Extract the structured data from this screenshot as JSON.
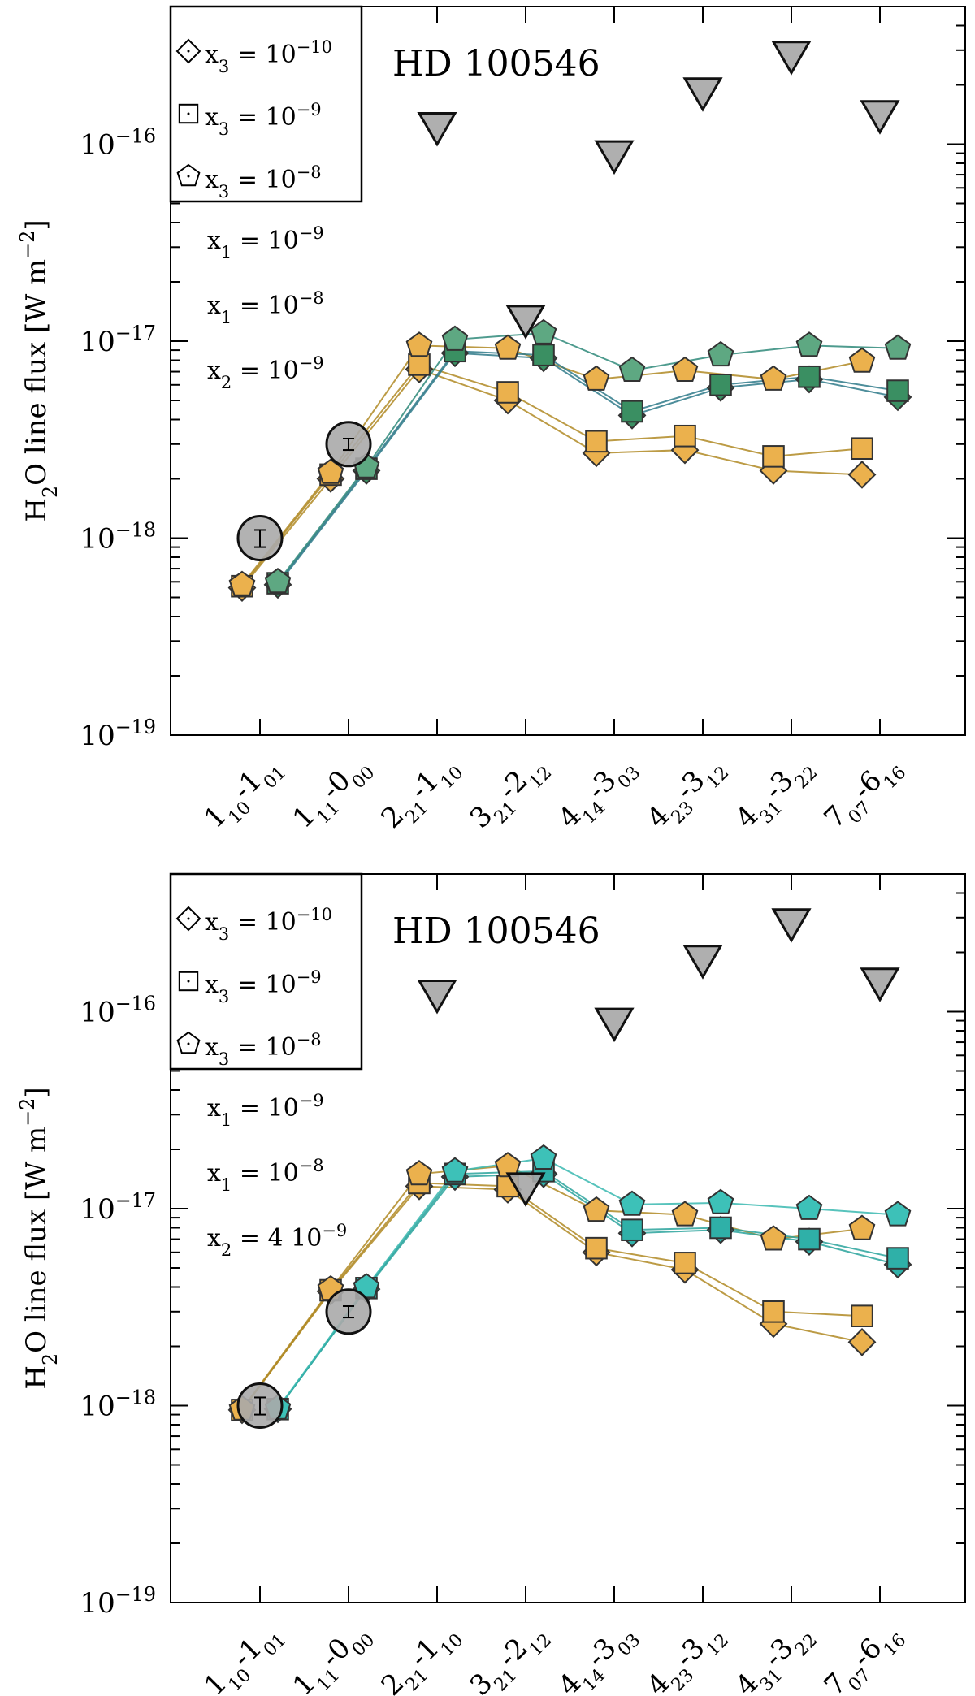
{
  "chart_data": [
    {
      "type": "line",
      "title": "HD 100546",
      "ylabel": "H2O line flux [W m-2]",
      "yscale": "log",
      "ylim": [
        1e-19,
        5e-16
      ],
      "y_ticks": [
        "10-19",
        "10-18",
        "10-17",
        "10-16"
      ],
      "categories": [
        "110-101",
        "111-000",
        "221-110",
        "321-212",
        "414-303",
        "423-312",
        "431-322",
        "707-616"
      ],
      "legend_markers": [
        {
          "marker": "diamond",
          "label": "x3 = 10-10"
        },
        {
          "marker": "square",
          "label": "x3 = 10-9"
        },
        {
          "marker": "pentagon",
          "label": "x3 = 10-8"
        }
      ],
      "model_notes": [
        {
          "label": "x1 = 10-9",
          "color": "#d4a130"
        },
        {
          "label": "x1 = 10-8",
          "color": "#3dbdb4"
        },
        {
          "label": "x2 = 10-9",
          "color": "#000000"
        }
      ],
      "observed_detections": [
        {
          "category": "110-101",
          "value": 1e-18,
          "err": 1e-19
        },
        {
          "category": "111-000",
          "value": 3e-18,
          "err": 2e-19
        }
      ],
      "upper_limits": [
        {
          "category": "221-110",
          "value": 1e-16
        },
        {
          "category": "321-212",
          "value": 1.05e-17
        },
        {
          "category": "414-303",
          "value": 7.2e-17
        },
        {
          "category": "423-312",
          "value": 1.5e-16
        },
        {
          "category": "431-322",
          "value": 2.3e-16
        },
        {
          "category": "707-616",
          "value": 1.15e-16
        }
      ],
      "series": [
        {
          "name": "x1 = 10-9, x3 = 10-10",
          "x1": "1e-9",
          "marker": "diamond",
          "color": "#ebb14d",
          "line": "#b08a25",
          "values": [
            5.6e-19,
            2e-18,
            7.2e-18,
            5e-18,
            2.7e-18,
            2.8e-18,
            2.2e-18,
            2.1e-18
          ]
        },
        {
          "name": "x1 = 10-9, x3 = 10-9",
          "x1": "1e-9",
          "marker": "square",
          "color": "#ebb14d",
          "line": "#b08a25",
          "values": [
            5.7e-19,
            2.1e-18,
            7.6e-18,
            5.5e-18,
            3.1e-18,
            3.3e-18,
            2.6e-18,
            2.85e-18
          ]
        },
        {
          "name": "x1 = 10-9, x3 = 10-8",
          "x1": "1e-9",
          "marker": "pentagon",
          "color": "#ebb14d",
          "line": "#b08a25",
          "values": [
            5.8e-19,
            2.15e-18,
            9.5e-18,
            9.2e-18,
            6.4e-18,
            7.1e-18,
            6.4e-18,
            7.9e-18
          ]
        },
        {
          "name": "x1 = 10-8, x3 = 10-10",
          "x1": "1e-8",
          "marker": "diamond",
          "color": "#3a8f62",
          "line": "#2f7a8a",
          "values": [
            5.8e-19,
            2.2e-18,
            8.7e-18,
            8.2e-18,
            4.2e-18,
            5.8e-18,
            6.4e-18,
            5.2e-18
          ]
        },
        {
          "name": "x1 = 10-8, x3 = 10-9",
          "x1": "1e-8",
          "marker": "square",
          "color": "#3a8f62",
          "line": "#2f7a8a",
          "values": [
            5.9e-19,
            2.25e-18,
            8.9e-18,
            8.5e-18,
            4.4e-18,
            6e-18,
            6.6e-18,
            5.6e-18
          ]
        },
        {
          "name": "x1 = 10-8, x3 = 10-8",
          "x1": "1e-8",
          "marker": "pentagon",
          "color": "#5ea882",
          "line": "#2f8a7a",
          "values": [
            6e-19,
            2.3e-18,
            1.02e-17,
            1.1e-17,
            7.1e-18,
            8.5e-18,
            9.5e-18,
            9.2e-18
          ]
        }
      ]
    },
    {
      "type": "line",
      "title": "HD 100546",
      "ylabel": "H2O line flux [W m-2]",
      "yscale": "log",
      "ylim": [
        1e-19,
        5e-16
      ],
      "y_ticks": [
        "10-19",
        "10-18",
        "10-17",
        "10-16"
      ],
      "categories": [
        "110-101",
        "111-000",
        "221-110",
        "321-212",
        "414-303",
        "423-312",
        "431-322",
        "707-616"
      ],
      "legend_markers": [
        {
          "marker": "diamond",
          "label": "x3 = 10-10"
        },
        {
          "marker": "square",
          "label": "x3 = 10-9"
        },
        {
          "marker": "pentagon",
          "label": "x3 = 10-8"
        }
      ],
      "model_notes": [
        {
          "label": "x1 = 10-9",
          "color": "#d4a130"
        },
        {
          "label": "x1 = 10-8",
          "color": "#3dbdb4"
        },
        {
          "label": "x2 = 4 10-9",
          "color": "#000000"
        }
      ],
      "observed_detections": [
        {
          "category": "110-101",
          "value": 1e-18,
          "err": 1e-19
        },
        {
          "category": "111-000",
          "value": 3e-18,
          "err": 2e-19
        }
      ],
      "upper_limits": [
        {
          "category": "221-110",
          "value": 1e-16
        },
        {
          "category": "321-212",
          "value": 1.05e-17
        },
        {
          "category": "414-303",
          "value": 7.2e-17
        },
        {
          "category": "423-312",
          "value": 1.5e-16
        },
        {
          "category": "431-322",
          "value": 2.3e-16
        },
        {
          "category": "707-616",
          "value": 1.15e-16
        }
      ],
      "series": [
        {
          "name": "x1 = 10-9, x3 = 10-10",
          "x1": "1e-9",
          "marker": "diamond",
          "color": "#ebb14d",
          "line": "#b08a25",
          "values": [
            9.5e-19,
            3.8e-18,
            1.3e-17,
            1.25e-17,
            6e-18,
            4.9e-18,
            2.6e-18,
            2.1e-18
          ]
        },
        {
          "name": "x1 = 10-9, x3 = 10-9",
          "x1": "1e-9",
          "marker": "square",
          "color": "#ebb14d",
          "line": "#b08a25",
          "values": [
            9.5e-19,
            3.85e-18,
            1.35e-17,
            1.3e-17,
            6.3e-18,
            5.3e-18,
            3e-18,
            2.85e-18
          ]
        },
        {
          "name": "x1 = 10-9, x3 = 10-8",
          "x1": "1e-9",
          "marker": "pentagon",
          "color": "#ebb14d",
          "line": "#b08a25",
          "values": [
            9.6e-19,
            3.9e-18,
            1.5e-17,
            1.65e-17,
            9.8e-18,
            9.3e-18,
            7e-18,
            7.9e-18
          ]
        },
        {
          "name": "x1 = 10-8, x3 = 10-10",
          "x1": "1e-8",
          "marker": "diamond",
          "color": "#2fb0a8",
          "line": "#2aa39c",
          "values": [
            9.6e-19,
            3.9e-18,
            1.45e-17,
            1.5e-17,
            7.5e-18,
            7.8e-18,
            6.8e-18,
            5.2e-18
          ]
        },
        {
          "name": "x1 = 10-8, x3 = 10-9",
          "x1": "1e-8",
          "marker": "square",
          "color": "#2fb0a8",
          "line": "#2aa39c",
          "values": [
            9.6e-19,
            3.95e-18,
            1.5e-17,
            1.55e-17,
            7.8e-18,
            8e-18,
            7e-18,
            5.6e-18
          ]
        },
        {
          "name": "x1 = 10-8, x3 = 10-8",
          "x1": "1e-8",
          "marker": "pentagon",
          "color": "#3dc1b8",
          "line": "#3ab8b0",
          "values": [
            9.7e-19,
            4e-18,
            1.55e-17,
            1.8e-17,
            1.05e-17,
            1.07e-17,
            1e-17,
            9.3e-18
          ]
        }
      ]
    }
  ]
}
